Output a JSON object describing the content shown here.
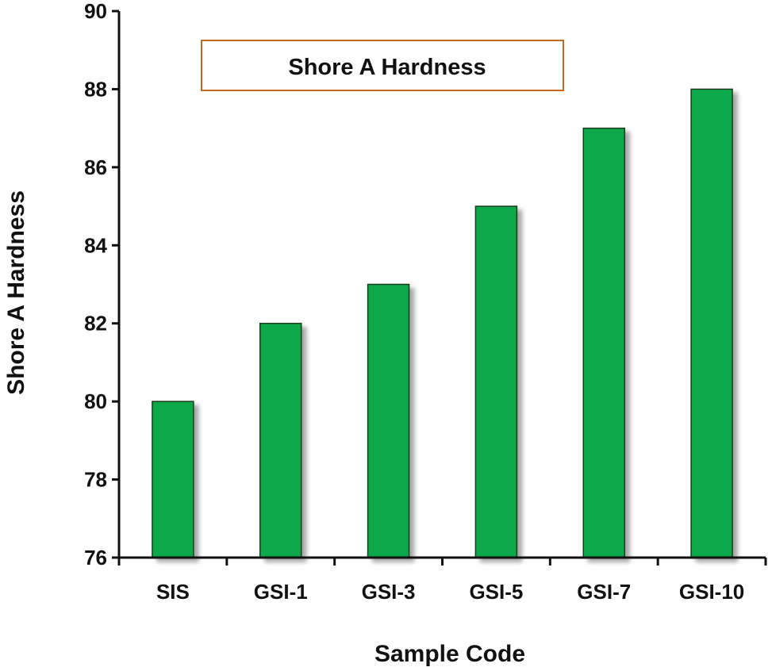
{
  "chart_data": {
    "type": "bar",
    "categories": [
      "SIS",
      "GSI-1",
      "GSI-3",
      "GSI-5",
      "GSI-7",
      "GSI-10"
    ],
    "series": [
      {
        "name": "Shore A Hardness",
        "values": [
          80,
          82,
          83,
          85,
          87,
          88
        ]
      }
    ],
    "xlabel": "Sample Code",
    "ylabel": "Shore A Hardness",
    "ylim": [
      76,
      90
    ],
    "yticks": [
      76,
      78,
      80,
      82,
      84,
      86,
      88,
      90
    ],
    "grid": false,
    "legend_position": "top-center",
    "colors": {
      "bar": "#0aa84a",
      "bar_edge": "#1e3a1e",
      "legend_border": "#c8691e",
      "axis": "#111111"
    }
  }
}
